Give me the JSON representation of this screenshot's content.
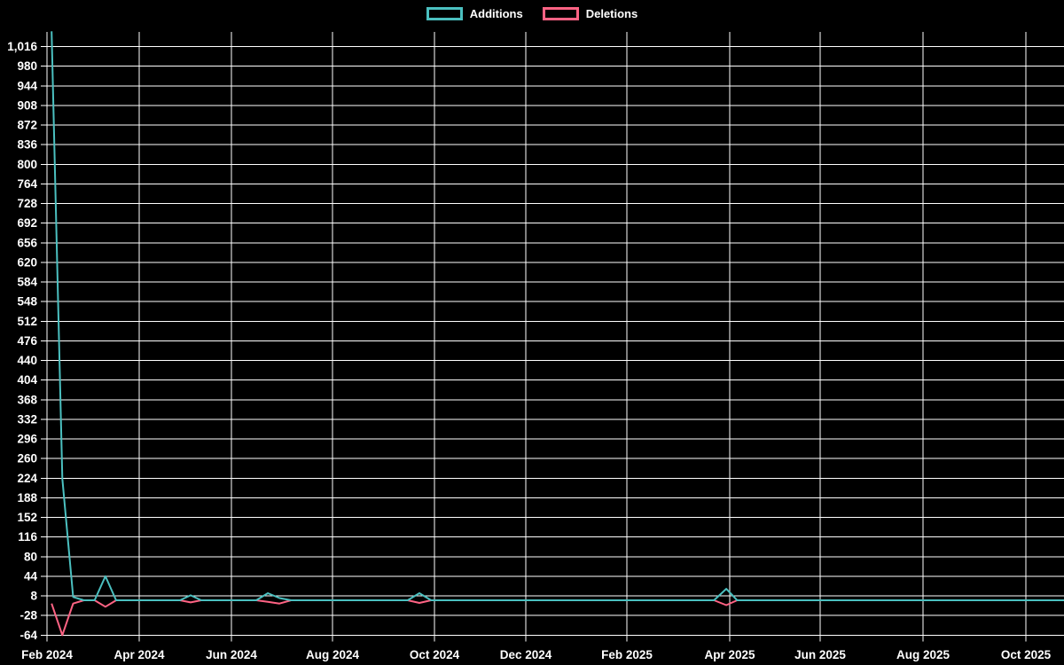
{
  "chart": {
    "background_color": "#000000",
    "text_color": "#ffffff",
    "grid_color": "#ffffff",
    "legend": {
      "position": "top",
      "items": [
        {
          "label": "Additions",
          "color": "#4bc0c0"
        },
        {
          "label": "Deletions",
          "color": "#ff6384"
        }
      ]
    }
  },
  "chart_data": {
    "type": "line",
    "title": "",
    "xlabel": "",
    "ylabel": "",
    "grid": true,
    "legend_position": "top-center",
    "x_axis": {
      "type": "time",
      "tick_labels": [
        "Feb 2024",
        "Apr 2024",
        "Jun 2024",
        "Aug 2024",
        "Oct 2024",
        "Dec 2024",
        "Feb 2025",
        "Apr 2025",
        "Jun 2025",
        "Aug 2025",
        "Oct 2025"
      ]
    },
    "y_axis": {
      "min": -64,
      "max": 1016,
      "step": 36,
      "tick_labels": [
        "-64",
        "-28",
        "8",
        "44",
        "80",
        "116",
        "152",
        "188",
        "224",
        "260",
        "296",
        "332",
        "368",
        "404",
        "440",
        "476",
        "512",
        "548",
        "584",
        "620",
        "656",
        "692",
        "728",
        "764",
        "800",
        "836",
        "872",
        "908",
        "944",
        "980",
        "1,016"
      ]
    },
    "series": [
      {
        "name": "Additions",
        "color": "#4bc0c0",
        "points": [
          [
            "2024-02-04",
            1044
          ],
          [
            "2024-02-11",
            223
          ],
          [
            "2024-02-18",
            6
          ],
          [
            "2024-02-25",
            0
          ],
          [
            "2024-03-03",
            0
          ],
          [
            "2024-03-10",
            44
          ],
          [
            "2024-03-17",
            0
          ],
          [
            "2024-04-28",
            0
          ],
          [
            "2024-05-05",
            9
          ],
          [
            "2024-05-12",
            0
          ],
          [
            "2024-06-16",
            0
          ],
          [
            "2024-06-23",
            13
          ],
          [
            "2024-06-30",
            4
          ],
          [
            "2024-07-07",
            0
          ],
          [
            "2024-09-15",
            0
          ],
          [
            "2024-09-22",
            13
          ],
          [
            "2024-09-29",
            0
          ],
          [
            "2025-03-23",
            0
          ],
          [
            "2025-03-30",
            21
          ],
          [
            "2025-04-06",
            0
          ],
          [
            "2025-10-26",
            0
          ]
        ]
      },
      {
        "name": "Deletions",
        "color": "#ff6384",
        "points": [
          [
            "2024-02-04",
            -6
          ],
          [
            "2024-02-11",
            -64
          ],
          [
            "2024-02-18",
            -6
          ],
          [
            "2024-02-25",
            0
          ],
          [
            "2024-03-03",
            0
          ],
          [
            "2024-03-10",
            -12
          ],
          [
            "2024-03-17",
            0
          ],
          [
            "2024-04-28",
            0
          ],
          [
            "2024-05-05",
            -4
          ],
          [
            "2024-05-12",
            0
          ],
          [
            "2024-06-16",
            0
          ],
          [
            "2024-06-23",
            -3
          ],
          [
            "2024-06-30",
            -6
          ],
          [
            "2024-07-07",
            0
          ],
          [
            "2024-09-15",
            0
          ],
          [
            "2024-09-22",
            -5
          ],
          [
            "2024-09-29",
            0
          ],
          [
            "2025-03-23",
            0
          ],
          [
            "2025-03-30",
            -9
          ],
          [
            "2025-04-06",
            0
          ],
          [
            "2025-10-26",
            0
          ]
        ]
      }
    ]
  }
}
